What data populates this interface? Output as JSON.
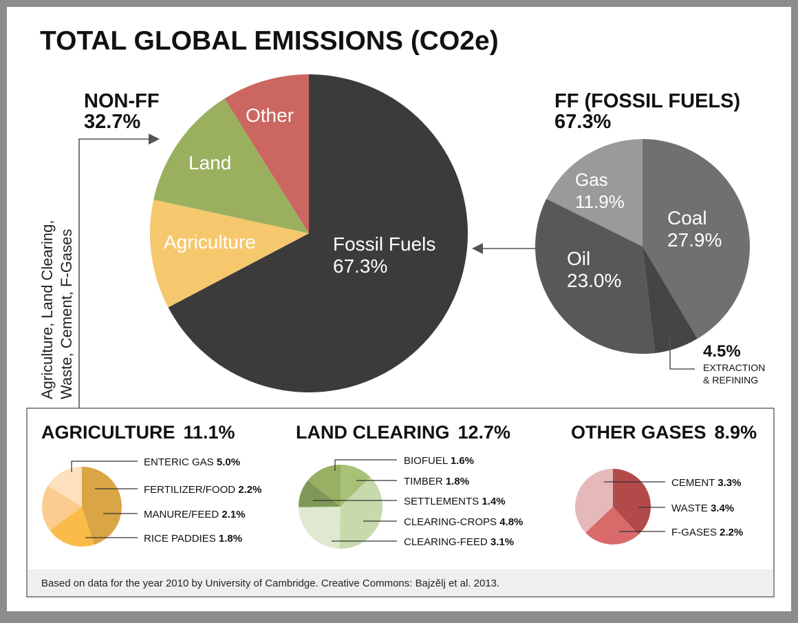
{
  "page": {
    "title": "TOTAL GLOBAL EMISSIONS (CO2e)",
    "footer": "Based on data for the year 2010  by University of Cambridge. Creative Commons:  Bajzělj et al. 2013.",
    "side_note_line1": "Agriculture, Land Clearing,",
    "side_note_line2": "Waste, Cement, F-Gases"
  },
  "colors": {
    "frame": "#8c8c8c",
    "fossil": "#3b3b3b",
    "agriculture": "#f6c86e",
    "land": "#9ab05f",
    "other": "#cc6660",
    "coal": "#707070",
    "oil": "#585858",
    "gas": "#9a9a9a",
    "extraction": "#454545"
  },
  "chart_data": [
    {
      "type": "pie",
      "title": "TOTAL GLOBAL EMISSIONS (CO2e)",
      "group_label": "NON-FF",
      "group_value": "32.7%",
      "slices": [
        {
          "label": "Fossil Fuels",
          "display": "67.3%",
          "value": 67.3,
          "color": "#3b3b3b"
        },
        {
          "label": "Agriculture",
          "display": "",
          "value": 11.1,
          "color": "#f6c86e"
        },
        {
          "label": "Land",
          "display": "",
          "value": 12.7,
          "color": "#9ab05f"
        },
        {
          "label": "Other",
          "display": "",
          "value": 8.9,
          "color": "#cc6660"
        }
      ]
    },
    {
      "type": "pie",
      "title": "FF (FOSSIL FUELS)",
      "subtitle": "67.3%",
      "slices": [
        {
          "label": "Coal",
          "display": "27.9%",
          "value": 27.9,
          "color": "#707070"
        },
        {
          "label": "",
          "display": "4.5%",
          "value": 4.5,
          "color": "#454545",
          "note_line1": "EXTRACTION",
          "note_line2": "& REFINING"
        },
        {
          "label": "Oil",
          "display": "23.0%",
          "value": 23.0,
          "color": "#585858"
        },
        {
          "label": "Gas",
          "display": "11.9%",
          "value": 11.9,
          "color": "#9a9a9a"
        }
      ]
    },
    {
      "type": "pie",
      "title": "AGRICULTURE",
      "total": "11.1%",
      "slices": [
        {
          "label": "ENTERIC GAS",
          "display": "5.0%",
          "value": 5.0,
          "color": "#d9a545"
        },
        {
          "label": "FERTILIZER/FOOD",
          "display": "2.2%",
          "value": 2.2,
          "color": "#fbbb48"
        },
        {
          "label": "MANURE/FEED",
          "display": "2.1%",
          "value": 2.1,
          "color": "#fbcc8f"
        },
        {
          "label": "RICE PADDIES",
          "display": "1.8%",
          "value": 1.8,
          "color": "#fde0bd"
        }
      ]
    },
    {
      "type": "pie",
      "title": "LAND CLEARING",
      "total": "12.7%",
      "slices": [
        {
          "label": "BIOFUEL",
          "display": "1.6%",
          "value": 1.6,
          "color": "#a7c277"
        },
        {
          "label": "CLEARING-CROPS",
          "display": "4.8%",
          "value": 4.8,
          "color": "#c8d9ab"
        },
        {
          "label": "CLEARING-FEED",
          "display": "3.1%",
          "value": 3.1,
          "color": "#e0e9cf"
        },
        {
          "label": "SETTLEMENTS",
          "display": "1.4%",
          "value": 1.4,
          "color": "#7f9857"
        },
        {
          "label": "TIMBER",
          "display": "1.8%",
          "value": 1.8,
          "color": "#97b062"
        }
      ]
    },
    {
      "type": "pie",
      "title": "OTHER GASES",
      "total": "8.9%",
      "slices": [
        {
          "label": "WASTE",
          "display": "3.4%",
          "value": 3.4,
          "color": "#b24a4a"
        },
        {
          "label": "F-GASES",
          "display": "2.2%",
          "value": 2.2,
          "color": "#d86a6a"
        },
        {
          "label": "CEMENT",
          "display": "3.3%",
          "value": 3.3,
          "color": "#e5b8ba"
        }
      ]
    }
  ]
}
